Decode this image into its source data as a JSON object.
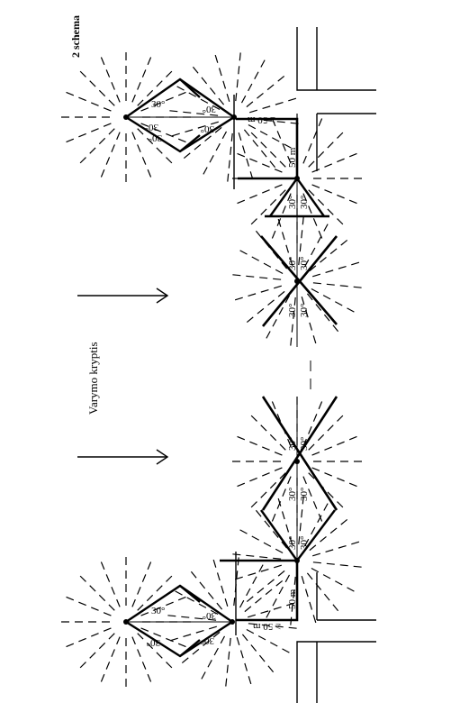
{
  "title": "2 schema",
  "direction_label": "Varymo kryptis",
  "labels": {
    "angle": "30°",
    "distance_bottom": "≥ 50 m",
    "distance_top": "≥ 50 m",
    "distance_side": "50 m"
  }
}
